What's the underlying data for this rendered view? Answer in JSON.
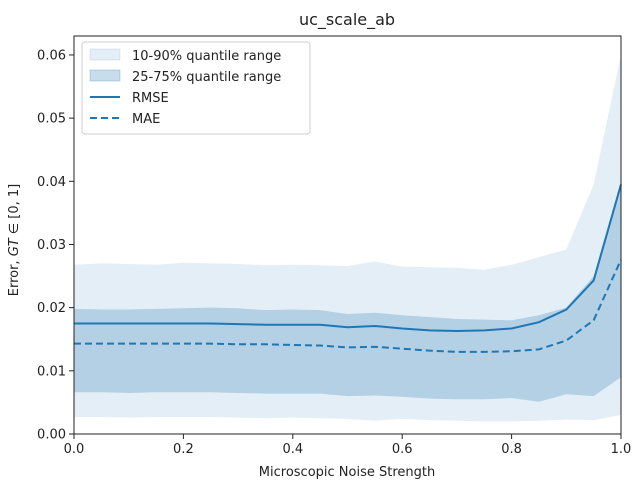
{
  "chart_data": {
    "type": "area",
    "title": "uc_scale_ab",
    "xlabel": "Microscopic Noise Strength",
    "ylabel_prefix": "Error, ",
    "ylabel_math": "GT",
    "ylabel_suffix": " ∈ [0, 1]",
    "xlim": [
      0.0,
      1.0
    ],
    "ylim": [
      0.0,
      0.063
    ],
    "xticks": [
      0.0,
      0.2,
      0.4,
      0.6,
      0.8,
      1.0
    ],
    "xtick_labels": [
      "0.0",
      "0.2",
      "0.4",
      "0.6",
      "0.8",
      "1.0"
    ],
    "yticks": [
      0.0,
      0.01,
      0.02,
      0.03,
      0.04,
      0.05,
      0.06
    ],
    "ytick_labels": [
      "0.00",
      "0.01",
      "0.02",
      "0.03",
      "0.04",
      "0.05",
      "0.06"
    ],
    "legend_position": "top-left",
    "grid": false,
    "x": [
      0.0,
      0.05,
      0.1,
      0.15,
      0.2,
      0.25,
      0.3,
      0.35,
      0.4,
      0.45,
      0.5,
      0.55,
      0.6,
      0.65,
      0.7,
      0.75,
      0.8,
      0.85,
      0.9,
      0.95,
      1.0
    ],
    "series": [
      {
        "name": "10-90% quantile range",
        "kind": "band",
        "color": "#1f77b4",
        "opacity": 0.12,
        "lower": [
          0.0027,
          0.0027,
          0.0026,
          0.0027,
          0.0027,
          0.0027,
          0.0026,
          0.0025,
          0.0026,
          0.0025,
          0.0024,
          0.0021,
          0.0024,
          0.0022,
          0.0021,
          0.002,
          0.002,
          0.0021,
          0.0023,
          0.0022,
          0.003
        ],
        "upper": [
          0.0268,
          0.027,
          0.0269,
          0.0268,
          0.0271,
          0.027,
          0.0269,
          0.0267,
          0.0268,
          0.0267,
          0.0266,
          0.0273,
          0.0265,
          0.0264,
          0.0263,
          0.026,
          0.0268,
          0.028,
          0.0292,
          0.0395,
          0.06
        ]
      },
      {
        "name": "25-75% quantile range",
        "kind": "band",
        "color": "#1f77b4",
        "opacity": 0.25,
        "lower": [
          0.0066,
          0.0066,
          0.0065,
          0.0066,
          0.0066,
          0.0066,
          0.0065,
          0.0064,
          0.0064,
          0.0064,
          0.006,
          0.0061,
          0.0059,
          0.0056,
          0.0055,
          0.0055,
          0.0057,
          0.0051,
          0.0063,
          0.006,
          0.009
        ],
        "upper": [
          0.0198,
          0.0197,
          0.0197,
          0.0198,
          0.0199,
          0.02,
          0.0199,
          0.0196,
          0.0197,
          0.0196,
          0.019,
          0.0192,
          0.0188,
          0.0185,
          0.0182,
          0.0181,
          0.018,
          0.0188,
          0.02,
          0.025,
          0.04
        ]
      },
      {
        "name": "RMSE",
        "kind": "line",
        "color": "#1f77b4",
        "dash": "solid",
        "values": [
          0.0175,
          0.0175,
          0.0175,
          0.0175,
          0.0175,
          0.0175,
          0.0174,
          0.0173,
          0.0173,
          0.0173,
          0.0169,
          0.0171,
          0.0167,
          0.0164,
          0.0163,
          0.0164,
          0.0167,
          0.0177,
          0.0197,
          0.0243,
          0.0395
        ]
      },
      {
        "name": "MAE",
        "kind": "line",
        "color": "#1f77b4",
        "dash": "dashed",
        "values": [
          0.0143,
          0.0143,
          0.0143,
          0.0143,
          0.0143,
          0.0143,
          0.0142,
          0.0142,
          0.0141,
          0.014,
          0.0137,
          0.0138,
          0.0135,
          0.0132,
          0.013,
          0.013,
          0.0131,
          0.0134,
          0.0148,
          0.018,
          0.0276
        ]
      }
    ]
  }
}
